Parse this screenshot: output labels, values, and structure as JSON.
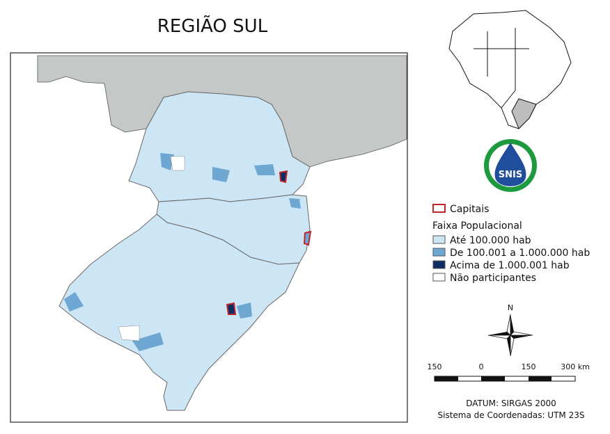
{
  "title": "REGIÃO SUL",
  "legend": {
    "capitals": {
      "label": "Capitais",
      "color": "#c0272d"
    },
    "heading": "Faixa Populacional",
    "items": [
      {
        "label": "Até 100.000 hab",
        "color": "#cde6f5"
      },
      {
        "label": " De 100.001 a 1.000.000 hab",
        "color": "#6fa7d3"
      },
      {
        "label": "Acima de 1.000.001 hab",
        "color": "#0b2d63"
      },
      {
        "label": "Não participantes",
        "color": "#ffffff"
      }
    ]
  },
  "logo": "SNIS",
  "north": "N",
  "scale": [
    "150",
    "0",
    "150",
    "300 km"
  ],
  "footer": [
    "DATUM: SIRGAS 2000",
    "Sistema de Coordenadas: UTM 23S"
  ]
}
